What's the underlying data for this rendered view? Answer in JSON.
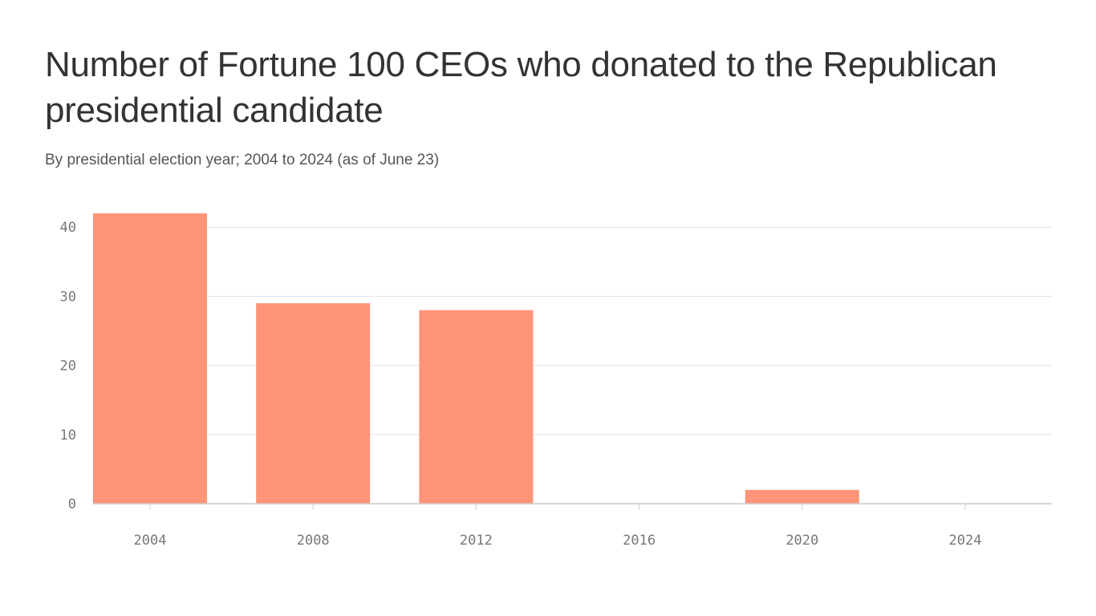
{
  "chart_data": {
    "type": "bar",
    "title": "Number of Fortune 100 CEOs who donated to the Republican presidential candidate",
    "subtitle": "By presidential election year; 2004 to 2024 (as of June 23)",
    "categories": [
      "2004",
      "2008",
      "2012",
      "2016",
      "2020",
      "2024"
    ],
    "values": [
      42,
      29,
      28,
      0,
      2,
      0
    ],
    "xlabel": "",
    "ylabel": "",
    "ylim": [
      0,
      42
    ],
    "yticks": [
      0,
      10,
      20,
      30,
      40
    ],
    "grid": true,
    "bar_color": "#ff9479",
    "grid_color": "#e2e2e2"
  }
}
